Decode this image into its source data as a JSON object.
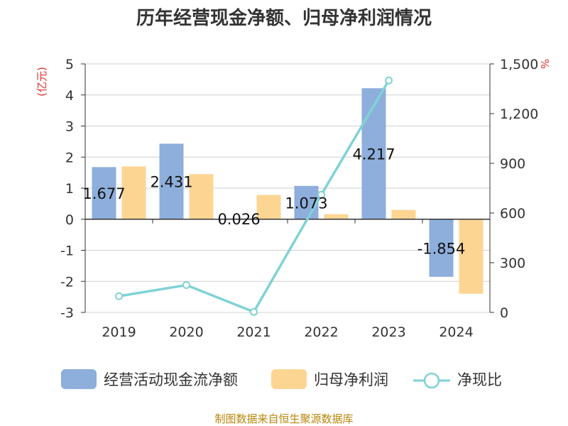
{
  "chart_data": {
    "type": "bar",
    "title": "历年经营现金净额、归母净利润情况",
    "categories": [
      "2019",
      "2020",
      "2021",
      "2022",
      "2023",
      "2024"
    ],
    "series": [
      {
        "name": "经营活动现金流净额",
        "kind": "bar",
        "axis": "left",
        "color": "#8eaedc",
        "values": [
          1.677,
          2.431,
          0.026,
          1.073,
          4.217,
          -1.854
        ],
        "labels": [
          "1.677",
          "2.431",
          "0.026",
          "1.073",
          "4.217",
          "-1.854"
        ]
      },
      {
        "name": "归母净利润",
        "kind": "bar",
        "axis": "left",
        "color": "#fdd593",
        "values": [
          1.7,
          1.45,
          0.78,
          0.16,
          0.3,
          -2.4
        ]
      },
      {
        "name": "净现比",
        "kind": "line",
        "axis": "right",
        "color": "#80d2d6",
        "values": [
          98,
          165,
          3,
          710,
          1400,
          null
        ]
      }
    ],
    "left_axis": {
      "unit": "(亿元)",
      "min": -3,
      "max": 5,
      "ticks": [
        5,
        4,
        3,
        2,
        1,
        0,
        -1,
        -2,
        -3
      ]
    },
    "right_axis": {
      "unit": "%",
      "min": 0,
      "max": 1500,
      "ticks": [
        1500,
        1200,
        900,
        600,
        300,
        0
      ],
      "tick_labels": [
        "1,500",
        "1,200",
        "900",
        "600",
        "300",
        "0"
      ]
    },
    "grid": true,
    "legend": "bottom",
    "source": "制图数据来自恒生聚源数据库"
  }
}
